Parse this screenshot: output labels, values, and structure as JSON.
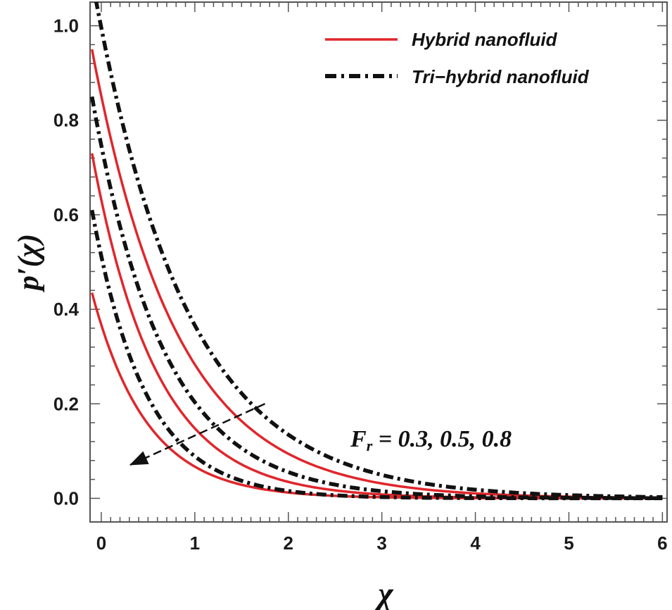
{
  "chart_data": {
    "type": "line",
    "xlabel": "χ",
    "ylabel": "p′(χ)",
    "xlim": [
      -0.12,
      6.05
    ],
    "ylim": [
      -0.05,
      1.05
    ],
    "x_ticks": [
      0,
      1,
      2,
      3,
      4,
      5,
      6
    ],
    "y_ticks": [
      0.0,
      0.2,
      0.4,
      0.6,
      0.8,
      1.0
    ],
    "x_tick_labels": [
      "0",
      "1",
      "2",
      "3",
      "4",
      "5",
      "6"
    ],
    "y_tick_labels": [
      "0.0",
      "0.2",
      "0.4",
      "0.6",
      "0.8",
      "1.0"
    ],
    "grid": false,
    "legend_position": "top-right",
    "legend": [
      {
        "label": "Hybrid nanofluid",
        "style": "solid",
        "color": "#e0262b"
      },
      {
        "label": "Tri−hybrid nanofluid",
        "style": "dash-dot",
        "color": "#111111"
      }
    ],
    "annotation": {
      "symbol": "F",
      "subscript": "r",
      "text": " = 0.3,  0.5, 0.8"
    },
    "series": [
      {
        "group": "Hybrid nanofluid",
        "x_start": -0.1,
        "x_end": 6.0,
        "y0": 0.95,
        "decay": 1.1
      },
      {
        "group": "Hybrid nanofluid",
        "x_start": -0.1,
        "x_end": 6.0,
        "y0": 0.73,
        "decay": 1.45
      },
      {
        "group": "Hybrid nanofluid",
        "x_start": -0.1,
        "x_end": 6.0,
        "y0": 0.435,
        "decay": 1.7
      },
      {
        "group": "Tri−hybrid nanofluid",
        "x_start": -0.1,
        "x_end": 6.0,
        "y0": 1.1,
        "decay": 1.0
      },
      {
        "group": "Tri−hybrid nanofluid",
        "x_start": -0.1,
        "x_end": 6.0,
        "y0": 0.85,
        "decay": 1.3
      },
      {
        "group": "Tri−hybrid nanofluid",
        "x_start": -0.1,
        "x_end": 6.0,
        "y0": 0.61,
        "decay": 1.75
      }
    ],
    "arrow": {
      "from": [
        1.75,
        0.2
      ],
      "to": [
        0.3,
        0.07
      ]
    },
    "colors": {
      "hybrid": "#e0262b",
      "trihybrid": "#111111"
    }
  }
}
